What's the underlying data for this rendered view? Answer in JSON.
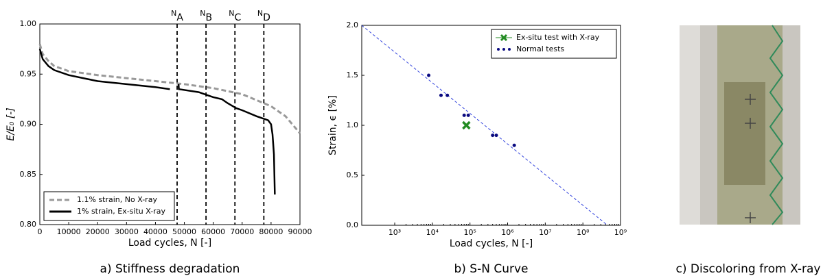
{
  "chart_data": [
    {
      "type": "line",
      "caption": "a) Stiffness degradation",
      "xlabel": "Load cycles, N [-]",
      "ylabel": "E/E₀ [-]",
      "xlim": [
        0,
        90000
      ],
      "ylim": [
        0.8,
        1.0
      ],
      "xticks": [
        0,
        10000,
        20000,
        30000,
        40000,
        50000,
        60000,
        70000,
        80000,
        90000
      ],
      "yticks": [
        {
          "value": 0.8,
          "label": "0.80"
        },
        {
          "value": 0.85,
          "label": "0.85"
        },
        {
          "value": 0.9,
          "label": "0.90"
        },
        {
          "value": 0.95,
          "label": "0.95"
        },
        {
          "value": 1.0,
          "label": "1.00"
        }
      ],
      "legend": "lower left",
      "annotations": [
        {
          "x": 47500,
          "label": "N",
          "sub": "A"
        },
        {
          "x": 57500,
          "label": "N",
          "sub": "B"
        },
        {
          "x": 67500,
          "label": "N",
          "sub": "C"
        },
        {
          "x": 77500,
          "label": "N",
          "sub": "D"
        }
      ],
      "series": [
        {
          "name": "1.1% strain, No X-ray",
          "color": "#999999",
          "dashed": true,
          "x": [
            0,
            1000,
            3000,
            5000,
            10000,
            20000,
            30000,
            40000,
            50000,
            60000,
            70000,
            80000,
            85000,
            90000
          ],
          "values": [
            0.98,
            0.97,
            0.963,
            0.958,
            0.953,
            0.949,
            0.946,
            0.943,
            0.94,
            0.936,
            0.93,
            0.918,
            0.908,
            0.891
          ]
        },
        {
          "name": "1% strain, Ex-situ X-ray",
          "color": "#000000",
          "dashed": false,
          "x": [
            0,
            1000,
            3000,
            5000,
            10000,
            20000,
            30000,
            40000,
            45000,
            46500,
            48000,
            48100,
            55000,
            58000,
            60000,
            63000,
            65000,
            68000,
            70000,
            75000,
            78000,
            79000,
            80000,
            80500,
            81000,
            81300
          ],
          "values": [
            0.975,
            0.965,
            0.958,
            0.954,
            0.949,
            0.943,
            0.94,
            0.937,
            0.935,
            null,
            0.94,
            0.935,
            0.932,
            0.929,
            0.927,
            0.925,
            0.921,
            0.916,
            0.914,
            0.908,
            0.905,
            0.904,
            0.9,
            0.89,
            0.87,
            0.83
          ]
        }
      ]
    },
    {
      "type": "scatter",
      "caption": "b) S-N Curve",
      "xlabel": "Load cycles, N [-]",
      "ylabel": "Strain, ϵ [%]",
      "xscale": "log",
      "xlim": [
        133,
        1000000000
      ],
      "ylim": [
        0,
        2.0
      ],
      "xticks": [
        {
          "value": 1000,
          "label": "10³"
        },
        {
          "value": 10000,
          "label": "10⁴"
        },
        {
          "value": 100000,
          "label": "10⁵"
        },
        {
          "value": 1000000,
          "label": "10⁶"
        },
        {
          "value": 10000000,
          "label": "10⁷"
        },
        {
          "value": 100000000,
          "label": "10⁸"
        },
        {
          "value": 1000000000,
          "label": "10⁹"
        }
      ],
      "yticks": [
        {
          "value": 0,
          "label": "0.0"
        },
        {
          "value": 0.5,
          "label": "0.5"
        },
        {
          "value": 1.0,
          "label": "1.0"
        },
        {
          "value": 1.5,
          "label": "1.5"
        },
        {
          "value": 2.0,
          "label": "2.0"
        }
      ],
      "legend": "upper right",
      "trend_line": {
        "color": "#3344dd",
        "x": [
          133,
          450000000
        ],
        "values": [
          2.0,
          0
        ]
      },
      "series": [
        {
          "name": "Ex-situ test with X-ray",
          "color": "#228b22",
          "marker": "x",
          "x": [
            80000
          ],
          "values": [
            1.0
          ]
        },
        {
          "name": "Normal tests",
          "color": "#0a0a80",
          "marker": "dot",
          "x": [
            8000,
            17000,
            25000,
            70000,
            90000,
            400000,
            500000,
            1500000
          ],
          "values": [
            1.5,
            1.3,
            1.3,
            1.1,
            1.1,
            0.9,
            0.9,
            0.8
          ]
        }
      ]
    }
  ],
  "photo": {
    "caption": "c) Discoloring from X-ray"
  }
}
